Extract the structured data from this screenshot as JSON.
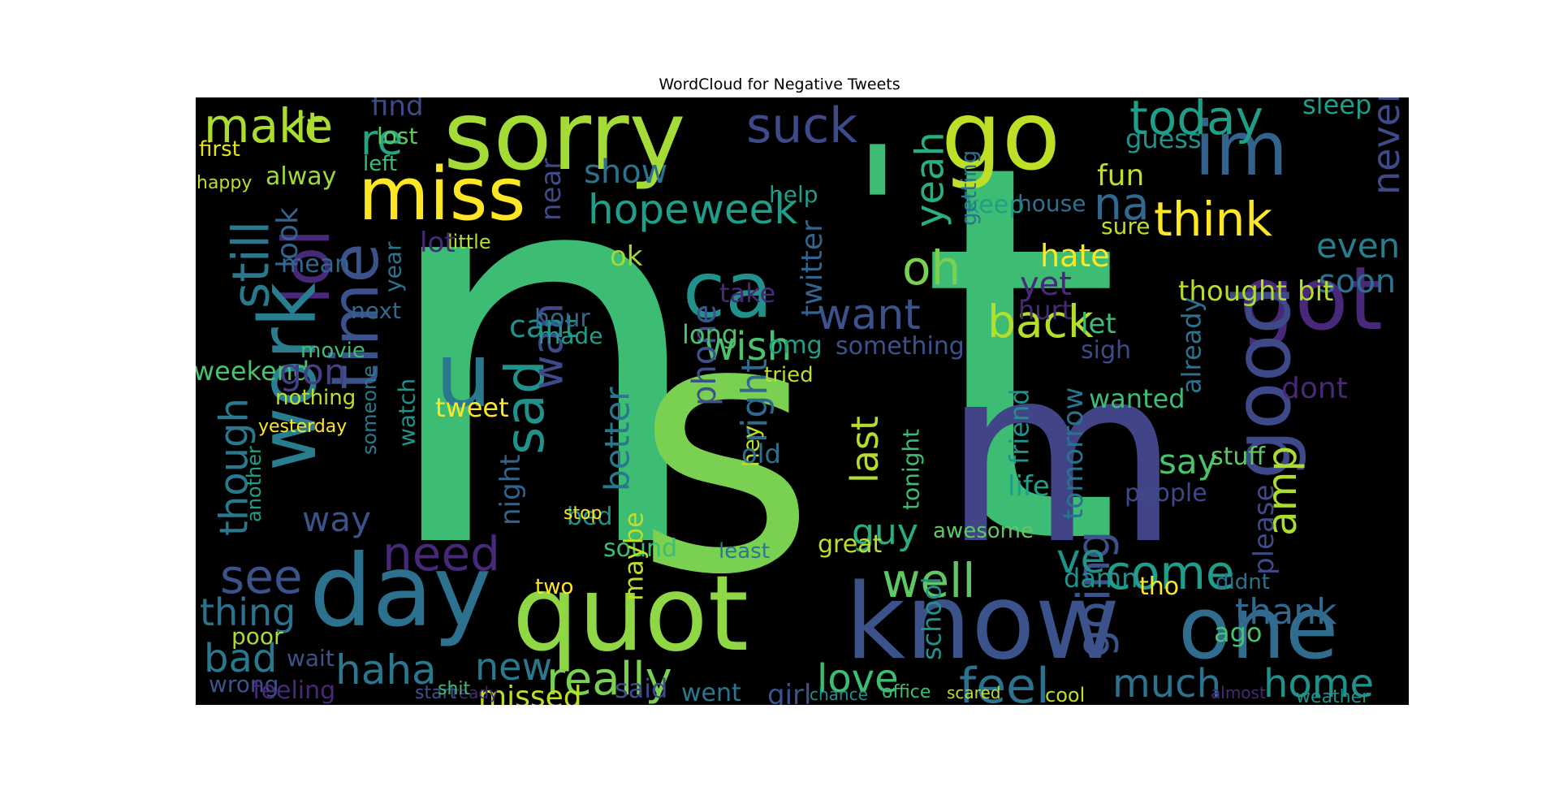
{
  "figure": {
    "title": "WordCloud for Negative Tweets"
  },
  "chart_data": {
    "type": "wordcloud",
    "title": "WordCloud for Negative Tweets",
    "background": "#000000",
    "colormap": "viridis",
    "words": [
      {
        "text": "n",
        "weight": 100,
        "color": "#3dbc74"
      },
      {
        "text": "s",
        "weight": 88,
        "color": "#7ad151"
      },
      {
        "text": "t",
        "weight": 95,
        "color": "#3dbc74"
      },
      {
        "text": "m",
        "weight": 60,
        "color": "#414487"
      },
      {
        "text": "'",
        "weight": 40,
        "color": "#3dbc74"
      },
      {
        "text": "sorry",
        "weight": 24,
        "color": "#a5db36"
      },
      {
        "text": "go",
        "weight": 22,
        "color": "#bddf26"
      },
      {
        "text": "im",
        "weight": 20,
        "color": "#33638d"
      },
      {
        "text": "miss",
        "weight": 18,
        "color": "#fde725"
      },
      {
        "text": "lol",
        "weight": 18,
        "color": "#482878"
      },
      {
        "text": "work",
        "weight": 19,
        "color": "#287d8e"
      },
      {
        "text": "still",
        "weight": 13,
        "color": "#2a788e"
      },
      {
        "text": "time",
        "weight": 15,
        "color": "#3b528b"
      },
      {
        "text": "day",
        "weight": 22,
        "color": "#2c728e"
      },
      {
        "text": "quot",
        "weight": 24,
        "color": "#8fd744"
      },
      {
        "text": "know",
        "weight": 24,
        "color": "#3b528b"
      },
      {
        "text": "one",
        "weight": 20,
        "color": "#2f6c8e"
      },
      {
        "text": "got",
        "weight": 17,
        "color": "#482878"
      },
      {
        "text": "good",
        "weight": 18,
        "color": "#3e4989"
      },
      {
        "text": "u",
        "weight": 16,
        "color": "#2a788e"
      },
      {
        "text": "ca",
        "weight": 13,
        "color": "#21918c"
      },
      {
        "text": "sad",
        "weight": 13,
        "color": "#21918c"
      },
      {
        "text": "wan",
        "weight": 10,
        "color": "#3e4a89"
      },
      {
        "text": "think",
        "weight": 10,
        "color": "#fde725"
      },
      {
        "text": "today",
        "weight": 10,
        "color": "#1f9e89"
      },
      {
        "text": "make",
        "weight": 9,
        "color": "#addc30"
      },
      {
        "text": "lt",
        "weight": 7,
        "color": "#addc30"
      },
      {
        "text": "re",
        "weight": 8,
        "color": "#22a785"
      },
      {
        "text": "suck",
        "weight": 9,
        "color": "#3e4a89"
      },
      {
        "text": "hope",
        "weight": 9,
        "color": "#1f9e89"
      },
      {
        "text": "week",
        "weight": 9,
        "color": "#1f9e89"
      },
      {
        "text": "want",
        "weight": 10,
        "color": "#3b528b"
      },
      {
        "text": "oh",
        "weight": 10,
        "color": "#7ad151"
      },
      {
        "text": "yeah",
        "weight": 9,
        "color": "#29af7f"
      },
      {
        "text": "back",
        "weight": 10,
        "color": "#b5de2b"
      },
      {
        "text": "wish",
        "weight": 9,
        "color": "#4ac16d"
      },
      {
        "text": "na",
        "weight": 9,
        "color": "#31688e"
      },
      {
        "text": "hate",
        "weight": 7,
        "color": "#fde725"
      },
      {
        "text": "need",
        "weight": 9,
        "color": "#482878"
      },
      {
        "text": "see",
        "weight": 9,
        "color": "#3b528b"
      },
      {
        "text": "thing",
        "weight": 8,
        "color": "#2c728e"
      },
      {
        "text": "bad",
        "weight": 8,
        "color": "#2a788e"
      },
      {
        "text": "haha",
        "weight": 8,
        "color": "#2a788e"
      },
      {
        "text": "new",
        "weight": 7,
        "color": "#2a788e"
      },
      {
        "text": "really",
        "weight": 9,
        "color": "#7ad151"
      },
      {
        "text": "missed",
        "weight": 6,
        "color": "#bddf26"
      },
      {
        "text": "love",
        "weight": 9,
        "color": "#3dbc74"
      },
      {
        "text": "feel",
        "weight": 10,
        "color": "#2c728e"
      },
      {
        "text": "much",
        "weight": 8,
        "color": "#2c728e"
      },
      {
        "text": "home",
        "weight": 8,
        "color": "#21918c"
      },
      {
        "text": "come",
        "weight": 9,
        "color": "#1f9e89"
      },
      {
        "text": "thank",
        "weight": 8,
        "color": "#31688e"
      },
      {
        "text": "going",
        "weight": 9,
        "color": "#3b528b"
      },
      {
        "text": "amp",
        "weight": 9,
        "color": "#addc30"
      },
      {
        "text": "well",
        "weight": 9,
        "color": "#5ec962"
      },
      {
        "text": "ve",
        "weight": 8,
        "color": "#21918c"
      },
      {
        "text": "guy",
        "weight": 7,
        "color": "#29af7f"
      },
      {
        "text": "last",
        "weight": 8,
        "color": "#b5de2b"
      },
      {
        "text": "right",
        "weight": 8,
        "color": "#31688e"
      },
      {
        "text": "better",
        "weight": 7,
        "color": "#2a788e"
      },
      {
        "text": "night",
        "weight": 7,
        "color": "#33638d"
      },
      {
        "text": "tomorrow",
        "weight": 7,
        "color": "#2c728e"
      },
      {
        "text": "friend",
        "weight": 7,
        "color": "#21918c"
      },
      {
        "text": "even",
        "weight": 7,
        "color": "#287d8e"
      },
      {
        "text": "soon",
        "weight": 6,
        "color": "#2c728e"
      },
      {
        "text": "never",
        "weight": 7,
        "color": "#3e4a89"
      },
      {
        "text": "sleep",
        "weight": 6,
        "color": "#1f9e89"
      },
      {
        "text": "fun",
        "weight": 6,
        "color": "#bddf26"
      },
      {
        "text": "guess",
        "weight": 6,
        "color": "#21918c"
      },
      {
        "text": "show",
        "weight": 6,
        "color": "#2c728e"
      },
      {
        "text": "cant",
        "weight": 6,
        "color": "#21918c"
      },
      {
        "text": "phone",
        "weight": 6,
        "color": "#3b528b"
      },
      {
        "text": "twitter",
        "weight": 6,
        "color": "#33638d"
      },
      {
        "text": "though",
        "weight": 7,
        "color": "#2a788e"
      },
      {
        "text": "look",
        "weight": 6,
        "color": "#33638d"
      },
      {
        "text": "way",
        "weight": 6,
        "color": "#3b528b"
      },
      {
        "text": "weekend",
        "weight": 5,
        "color": "#4ac16d"
      },
      {
        "text": "tweet",
        "weight": 5,
        "color": "#fde725"
      },
      {
        "text": "say",
        "weight": 6,
        "color": "#4ac16d"
      },
      {
        "text": "people",
        "weight": 5,
        "color": "#3e4989"
      },
      {
        "text": "thought",
        "weight": 5,
        "color": "#b5de2b"
      },
      {
        "text": "bit",
        "weight": 5,
        "color": "#b5de2b"
      },
      {
        "text": "dont",
        "weight": 6,
        "color": "#482878"
      },
      {
        "text": "wanted",
        "weight": 5,
        "color": "#3dbc74"
      },
      {
        "text": "already",
        "weight": 5,
        "color": "#2c728e"
      },
      {
        "text": "first",
        "weight": 4,
        "color": "#e5e419"
      },
      {
        "text": "find",
        "weight": 4,
        "color": "#3e4a89"
      },
      {
        "text": "lost",
        "weight": 4,
        "color": "#5ec962"
      },
      {
        "text": "left",
        "weight": 4,
        "color": "#3dbc74"
      },
      {
        "text": "alway",
        "weight": 4,
        "color": "#a0da39"
      },
      {
        "text": "happy",
        "weight": 3,
        "color": "#bddf26"
      },
      {
        "text": "mean",
        "weight": 4,
        "color": "#31688e"
      },
      {
        "text": "next",
        "weight": 4,
        "color": "#31688e"
      },
      {
        "text": "year",
        "weight": 4,
        "color": "#2c728e"
      },
      {
        "text": "gon",
        "weight": 5,
        "color": "#433e85"
      },
      {
        "text": "nothing",
        "weight": 4,
        "color": "#bddf26"
      },
      {
        "text": "yesterday",
        "weight": 3,
        "color": "#fde725"
      },
      {
        "text": "watch",
        "weight": 4,
        "color": "#21918c"
      },
      {
        "text": "someone",
        "weight": 4,
        "color": "#2a788e"
      },
      {
        "text": "movie",
        "weight": 3,
        "color": "#3dbc74"
      },
      {
        "text": "another",
        "weight": 3,
        "color": "#1f9e89"
      },
      {
        "text": "poor",
        "weight": 4,
        "color": "#addc30"
      },
      {
        "text": "wrong",
        "weight": 4,
        "color": "#3b528b"
      },
      {
        "text": "feeling",
        "weight": 4,
        "color": "#482878"
      },
      {
        "text": "wait",
        "weight": 4,
        "color": "#3b528b"
      },
      {
        "text": "made",
        "weight": 4,
        "color": "#1f9e89"
      },
      {
        "text": "hour",
        "weight": 4,
        "color": "#31688e"
      },
      {
        "text": "long",
        "weight": 4,
        "color": "#4ac16d"
      },
      {
        "text": "take",
        "weight": 4,
        "color": "#482878"
      },
      {
        "text": "omg",
        "weight": 4,
        "color": "#1f9e89"
      },
      {
        "text": "tried",
        "weight": 3,
        "color": "#bddf26"
      },
      {
        "text": "hey",
        "weight": 4,
        "color": "#bddf26"
      },
      {
        "text": "old",
        "weight": 4,
        "color": "#2c728e"
      },
      {
        "text": "something",
        "weight": 4,
        "color": "#3b528b"
      },
      {
        "text": "keep",
        "weight": 4,
        "color": "#1f9e89"
      },
      {
        "text": "house",
        "weight": 3,
        "color": "#2c728e"
      },
      {
        "text": "getting",
        "weight": 4,
        "color": "#2c728e"
      },
      {
        "text": "sure",
        "weight": 4,
        "color": "#bddf26"
      },
      {
        "text": "yet",
        "weight": 5,
        "color": "#482878"
      },
      {
        "text": "hurt",
        "weight": 4,
        "color": "#482878"
      },
      {
        "text": "let",
        "weight": 4,
        "color": "#3dbc74"
      },
      {
        "text": "sigh",
        "weight": 4,
        "color": "#3e4a89"
      },
      {
        "text": "ok",
        "weight": 4,
        "color": "#a0da39"
      },
      {
        "text": "little",
        "weight": 3,
        "color": "#b5de2b"
      },
      {
        "text": "lot",
        "weight": 4,
        "color": "#482878"
      },
      {
        "text": "near",
        "weight": 4,
        "color": "#3e4a89"
      },
      {
        "text": "help",
        "weight": 4,
        "color": "#1f9e89"
      },
      {
        "text": "life",
        "weight": 4,
        "color": "#1f9e89"
      },
      {
        "text": "stuff",
        "weight": 4,
        "color": "#5ec962"
      },
      {
        "text": "please",
        "weight": 4,
        "color": "#3e4a89"
      },
      {
        "text": "damn",
        "weight": 4,
        "color": "#21918c"
      },
      {
        "text": "didnt",
        "weight": 4,
        "color": "#2c728e"
      },
      {
        "text": "tho",
        "weight": 4,
        "color": "#fde725"
      },
      {
        "text": "sound",
        "weight": 4,
        "color": "#3dbc74"
      },
      {
        "text": "least",
        "weight": 3,
        "color": "#2a788e"
      },
      {
        "text": "great",
        "weight": 4,
        "color": "#bddf26"
      },
      {
        "text": "awesome",
        "weight": 3,
        "color": "#5ec962"
      },
      {
        "text": "school",
        "weight": 4,
        "color": "#21918c"
      },
      {
        "text": "ago",
        "weight": 4,
        "color": "#4ac16d"
      },
      {
        "text": "maybe",
        "weight": 4,
        "color": "#bddf26"
      },
      {
        "text": "said",
        "weight": 4,
        "color": "#3e4a89"
      },
      {
        "text": "went",
        "weight": 4,
        "color": "#2a788e"
      },
      {
        "text": "girl",
        "weight": 4,
        "color": "#3b528b"
      },
      {
        "text": "tonight",
        "weight": 3,
        "color": "#3dbc74"
      },
      {
        "text": "bed",
        "weight": 3,
        "color": "#21918c"
      },
      {
        "text": "stop",
        "weight": 3,
        "color": "#fde725"
      },
      {
        "text": "two",
        "weight": 3,
        "color": "#fde725"
      },
      {
        "text": "cool",
        "weight": 3,
        "color": "#bddf26"
      },
      {
        "text": "weather",
        "weight": 3,
        "color": "#21918c"
      },
      {
        "text": "almost",
        "weight": 3,
        "color": "#482878"
      },
      {
        "text": "ready",
        "weight": 3,
        "color": "#482878"
      },
      {
        "text": "start",
        "weight": 3,
        "color": "#3b528b"
      },
      {
        "text": "shit",
        "weight": 3,
        "color": "#3dbc74"
      },
      {
        "text": "office",
        "weight": 3,
        "color": "#3dbc74"
      },
      {
        "text": "chance",
        "weight": 3,
        "color": "#21918c"
      },
      {
        "text": "scared",
        "weight": 2,
        "color": "#bddf26"
      }
    ]
  }
}
